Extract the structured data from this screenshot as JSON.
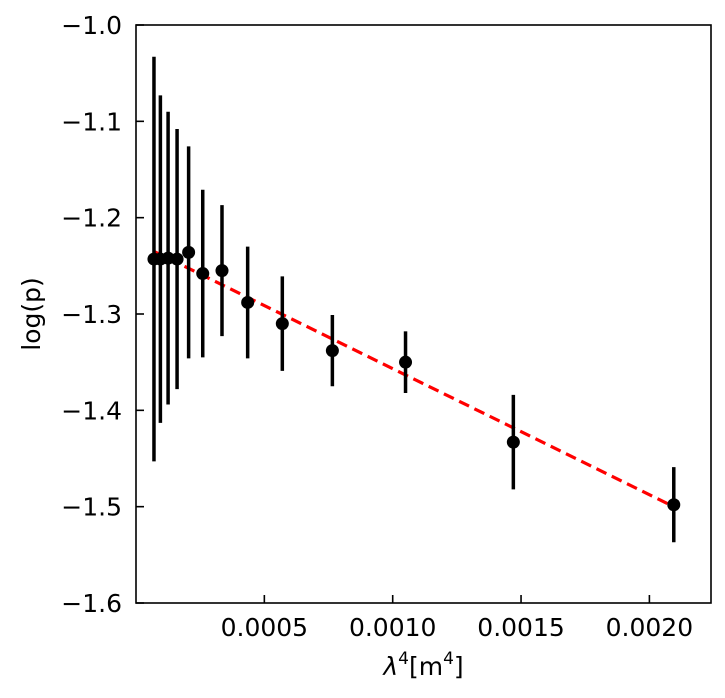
{
  "chart_data": {
    "type": "scatter",
    "title": "",
    "xlabel_base": "λ",
    "xlabel_sup1": "4",
    "xlabel_mid": "[m",
    "xlabel_sup2": "4",
    "xlabel_end": "]",
    "ylabel": "log(p)",
    "xlim": [
      0.0,
      0.00224
    ],
    "ylim": [
      -1.6,
      -1.0
    ],
    "xticks": [
      0.0005,
      0.001,
      0.0015,
      0.002
    ],
    "xtick_labels": [
      "0.0005",
      "0.0010",
      "0.0015",
      "0.0020"
    ],
    "yticks": [
      -1.0,
      -1.1,
      -1.2,
      -1.3,
      -1.4,
      -1.5,
      -1.6
    ],
    "ytick_labels": [
      "−1.0",
      "−1.1",
      "−1.2",
      "−1.3",
      "−1.4",
      "−1.5",
      "−1.6"
    ],
    "grid": false,
    "points": [
      {
        "x": 7e-05,
        "y": -1.243,
        "err": 0.21
      },
      {
        "x": 9.5e-05,
        "y": -1.243,
        "err": 0.17
      },
      {
        "x": 0.000125,
        "y": -1.242,
        "err": 0.152
      },
      {
        "x": 0.00016,
        "y": -1.243,
        "err": 0.135
      },
      {
        "x": 0.000205,
        "y": -1.236,
        "err": 0.11
      },
      {
        "x": 0.00026,
        "y": -1.258,
        "err": 0.087
      },
      {
        "x": 0.000335,
        "y": -1.255,
        "err": 0.068
      },
      {
        "x": 0.000435,
        "y": -1.288,
        "err": 0.058
      },
      {
        "x": 0.00057,
        "y": -1.31,
        "err": 0.049
      },
      {
        "x": 0.000765,
        "y": -1.338,
        "err": 0.037
      },
      {
        "x": 0.00105,
        "y": -1.35,
        "err": 0.032
      },
      {
        "x": 0.00147,
        "y": -1.433,
        "err": 0.049
      },
      {
        "x": 0.002095,
        "y": -1.498,
        "err": 0.039
      }
    ],
    "fit": {
      "x": [
        7e-05,
        0.002095
      ],
      "y": [
        -1.235,
        -1.5
      ]
    },
    "colors": {
      "points": "#000000",
      "fit": "#ff0000"
    }
  }
}
